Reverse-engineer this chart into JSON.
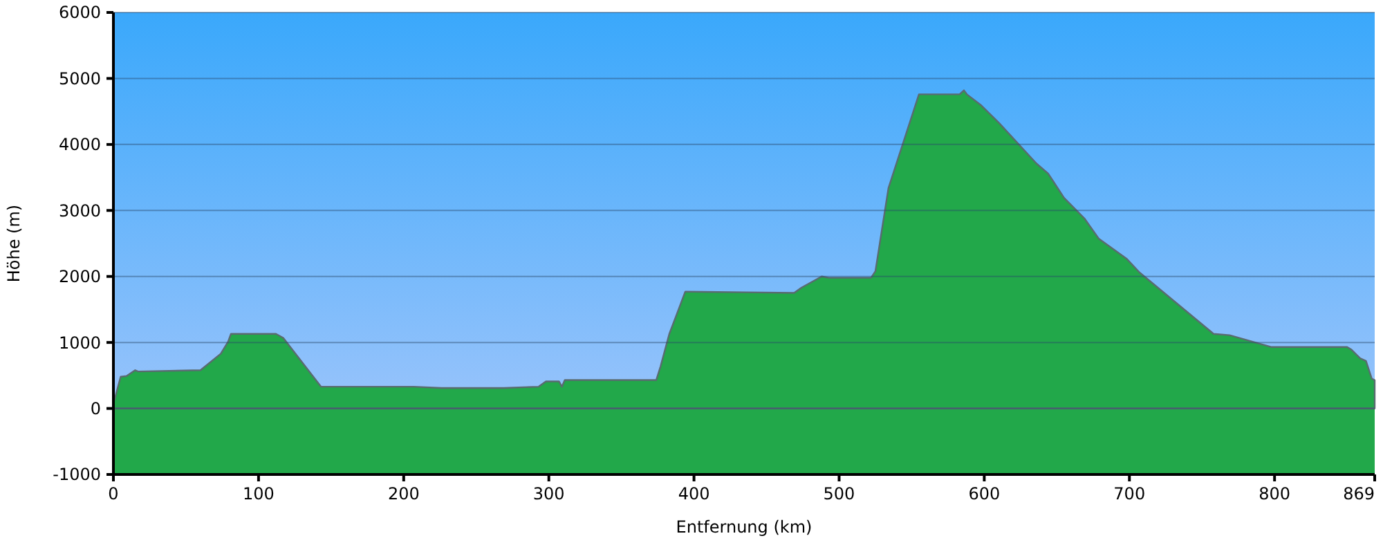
{
  "chart_data": {
    "type": "area",
    "xlabel": "Entfernung   (km)",
    "ylabel": "Höhe (m)",
    "x": [
      0,
      1,
      5,
      9,
      15,
      17,
      60,
      74,
      79,
      81,
      112,
      117,
      143,
      207,
      226,
      269,
      293,
      298,
      307,
      309,
      311,
      374,
      377,
      383,
      388,
      394,
      436,
      469,
      474,
      488,
      493,
      522,
      525,
      534,
      555,
      583,
      586,
      588,
      598,
      610,
      636,
      644,
      655,
      669,
      679,
      698,
      707,
      758,
      769,
      798,
      850,
      853,
      859,
      863,
      867,
      869
    ],
    "values": [
      100,
      150,
      480,
      490,
      580,
      560,
      580,
      830,
      1010,
      1130,
      1130,
      1070,
      330,
      330,
      310,
      310,
      330,
      410,
      410,
      330,
      430,
      430,
      640,
      1130,
      1420,
      1770,
      1760,
      1750,
      1830,
      2000,
      1980,
      1980,
      2080,
      3340,
      4760,
      4760,
      4820,
      4760,
      4590,
      4330,
      3710,
      3560,
      3190,
      2880,
      2570,
      2270,
      2060,
      1130,
      1110,
      930,
      930,
      890,
      760,
      720,
      450,
      430
    ],
    "color": "#22a84a",
    "xlim": [
      0,
      869
    ],
    "xticks": [
      0,
      100,
      200,
      300,
      400,
      500,
      600,
      700,
      800,
      869
    ],
    "ylim": [
      -1000,
      6000
    ],
    "yticks": [
      -1000,
      0,
      1000,
      2000,
      3000,
      4000,
      5000,
      6000
    ],
    "grid": "y"
  }
}
